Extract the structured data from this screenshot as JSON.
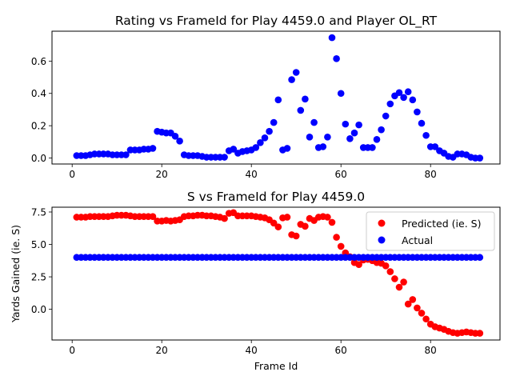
{
  "chart_data": [
    {
      "type": "scatter",
      "title": "Rating vs FrameId for Play 4459.0 and Player OL_RT",
      "xlabel": "",
      "ylabel": "",
      "xlim": [
        -4.5,
        95.5
      ],
      "ylim": [
        -0.037,
        0.785
      ],
      "xticks": [
        0,
        20,
        40,
        60,
        80
      ],
      "yticks": [
        0.0,
        0.2,
        0.4,
        0.6
      ],
      "ytick_labels": [
        "0.0",
        "0.2",
        "0.4",
        "0.6"
      ],
      "grid": false,
      "series": [
        {
          "color": "#0000ff",
          "x": [
            1,
            2,
            3,
            4,
            5,
            6,
            7,
            8,
            9,
            10,
            11,
            12,
            13,
            14,
            15,
            16,
            17,
            18,
            19,
            20,
            21,
            22,
            23,
            24,
            25,
            26,
            27,
            28,
            29,
            30,
            31,
            32,
            33,
            34,
            35,
            36,
            37,
            38,
            39,
            40,
            41,
            42,
            43,
            44,
            45,
            46,
            47,
            48,
            49,
            50,
            51,
            52,
            53,
            54,
            55,
            56,
            57,
            58,
            59,
            60,
            61,
            62,
            63,
            64,
            65,
            66,
            67,
            68,
            69,
            70,
            71,
            72,
            73,
            74,
            75,
            76,
            77,
            78,
            79,
            80,
            81,
            82,
            83,
            84,
            85,
            86,
            87,
            88,
            89,
            90,
            91
          ],
          "y": [
            0.015,
            0.015,
            0.015,
            0.02,
            0.025,
            0.025,
            0.025,
            0.025,
            0.02,
            0.02,
            0.02,
            0.02,
            0.05,
            0.05,
            0.05,
            0.055,
            0.055,
            0.06,
            0.165,
            0.16,
            0.155,
            0.155,
            0.135,
            0.105,
            0.02,
            0.015,
            0.015,
            0.015,
            0.01,
            0.005,
            0.005,
            0.005,
            0.005,
            0.005,
            0.045,
            0.055,
            0.03,
            0.04,
            0.045,
            0.05,
            0.065,
            0.095,
            0.125,
            0.165,
            0.22,
            0.36,
            0.05,
            0.06,
            0.485,
            0.53,
            0.295,
            0.365,
            0.13,
            0.22,
            0.065,
            0.07,
            0.13,
            0.745,
            0.615,
            0.4,
            0.21,
            0.12,
            0.155,
            0.205,
            0.065,
            0.065,
            0.065,
            0.115,
            0.175,
            0.26,
            0.335,
            0.385,
            0.405,
            0.375,
            0.41,
            0.36,
            0.285,
            0.215,
            0.14,
            0.07,
            0.07,
            0.045,
            0.03,
            0.01,
            0.005,
            0.025,
            0.025,
            0.02,
            0.005,
            0.0,
            0.0
          ]
        }
      ]
    },
    {
      "type": "scatter",
      "title": "S vs FrameId for Play 4459.0",
      "xlabel": "Frame Id",
      "ylabel": "Yards Gained (ie. S)",
      "xlim": [
        -4.5,
        95.5
      ],
      "ylim": [
        -2.37,
        7.87
      ],
      "xticks": [
        0,
        20,
        40,
        60,
        80
      ],
      "yticks": [
        0.0,
        2.5,
        5.0,
        7.5
      ],
      "ytick_labels": [
        "0.0",
        "2.5",
        "5.0",
        "7.5"
      ],
      "grid": false,
      "legend": "upper-right",
      "series": [
        {
          "name": "Predicted (ie. S)",
          "color": "#ff0000",
          "x": [
            1,
            2,
            3,
            4,
            5,
            6,
            7,
            8,
            9,
            10,
            11,
            12,
            13,
            14,
            15,
            16,
            17,
            18,
            19,
            20,
            21,
            22,
            23,
            24,
            25,
            26,
            27,
            28,
            29,
            30,
            31,
            32,
            33,
            34,
            35,
            36,
            37,
            38,
            39,
            40,
            41,
            42,
            43,
            44,
            45,
            46,
            47,
            48,
            49,
            50,
            51,
            52,
            53,
            54,
            55,
            56,
            57,
            58,
            59,
            60,
            61,
            62,
            63,
            64,
            65,
            66,
            67,
            68,
            69,
            70,
            71,
            72,
            73,
            74,
            75,
            76,
            77,
            78,
            79,
            80,
            81,
            82,
            83,
            84,
            85,
            86,
            87,
            88,
            89,
            90,
            91
          ],
          "y": [
            7.1,
            7.1,
            7.1,
            7.15,
            7.15,
            7.15,
            7.15,
            7.15,
            7.2,
            7.25,
            7.25,
            7.25,
            7.2,
            7.15,
            7.15,
            7.15,
            7.15,
            7.15,
            6.8,
            6.8,
            6.85,
            6.8,
            6.85,
            6.9,
            7.15,
            7.2,
            7.2,
            7.25,
            7.25,
            7.2,
            7.2,
            7.15,
            7.1,
            7.0,
            7.4,
            7.45,
            7.2,
            7.2,
            7.2,
            7.2,
            7.15,
            7.1,
            7.05,
            6.9,
            6.65,
            6.35,
            7.05,
            7.1,
            5.75,
            5.65,
            6.55,
            6.4,
            7.0,
            6.85,
            7.1,
            7.15,
            7.1,
            6.7,
            5.55,
            4.85,
            4.35,
            4.05,
            3.6,
            3.45,
            3.8,
            3.85,
            3.75,
            3.6,
            3.55,
            3.35,
            2.9,
            2.35,
            1.7,
            2.1,
            0.4,
            0.75,
            0.1,
            -0.3,
            -0.75,
            -1.15,
            -1.35,
            -1.45,
            -1.55,
            -1.7,
            -1.8,
            -1.85,
            -1.8,
            -1.75,
            -1.8,
            -1.85,
            -1.85
          ]
        },
        {
          "name": "Actual",
          "color": "#0000ff",
          "x": [
            1,
            2,
            3,
            4,
            5,
            6,
            7,
            8,
            9,
            10,
            11,
            12,
            13,
            14,
            15,
            16,
            17,
            18,
            19,
            20,
            21,
            22,
            23,
            24,
            25,
            26,
            27,
            28,
            29,
            30,
            31,
            32,
            33,
            34,
            35,
            36,
            37,
            38,
            39,
            40,
            41,
            42,
            43,
            44,
            45,
            46,
            47,
            48,
            49,
            50,
            51,
            52,
            53,
            54,
            55,
            56,
            57,
            58,
            59,
            60,
            61,
            62,
            63,
            64,
            65,
            66,
            67,
            68,
            69,
            70,
            71,
            72,
            73,
            74,
            75,
            76,
            77,
            78,
            79,
            80,
            81,
            82,
            83,
            84,
            85,
            86,
            87,
            88,
            89,
            90,
            91
          ],
          "y": [
            4,
            4,
            4,
            4,
            4,
            4,
            4,
            4,
            4,
            4,
            4,
            4,
            4,
            4,
            4,
            4,
            4,
            4,
            4,
            4,
            4,
            4,
            4,
            4,
            4,
            4,
            4,
            4,
            4,
            4,
            4,
            4,
            4,
            4,
            4,
            4,
            4,
            4,
            4,
            4,
            4,
            4,
            4,
            4,
            4,
            4,
            4,
            4,
            4,
            4,
            4,
            4,
            4,
            4,
            4,
            4,
            4,
            4,
            4,
            4,
            4,
            4,
            4,
            4,
            4,
            4,
            4,
            4,
            4,
            4,
            4,
            4,
            4,
            4,
            4,
            4,
            4,
            4,
            4,
            4,
            4,
            4,
            4,
            4,
            4,
            4,
            4,
            4,
            4,
            4,
            4
          ]
        }
      ]
    }
  ]
}
